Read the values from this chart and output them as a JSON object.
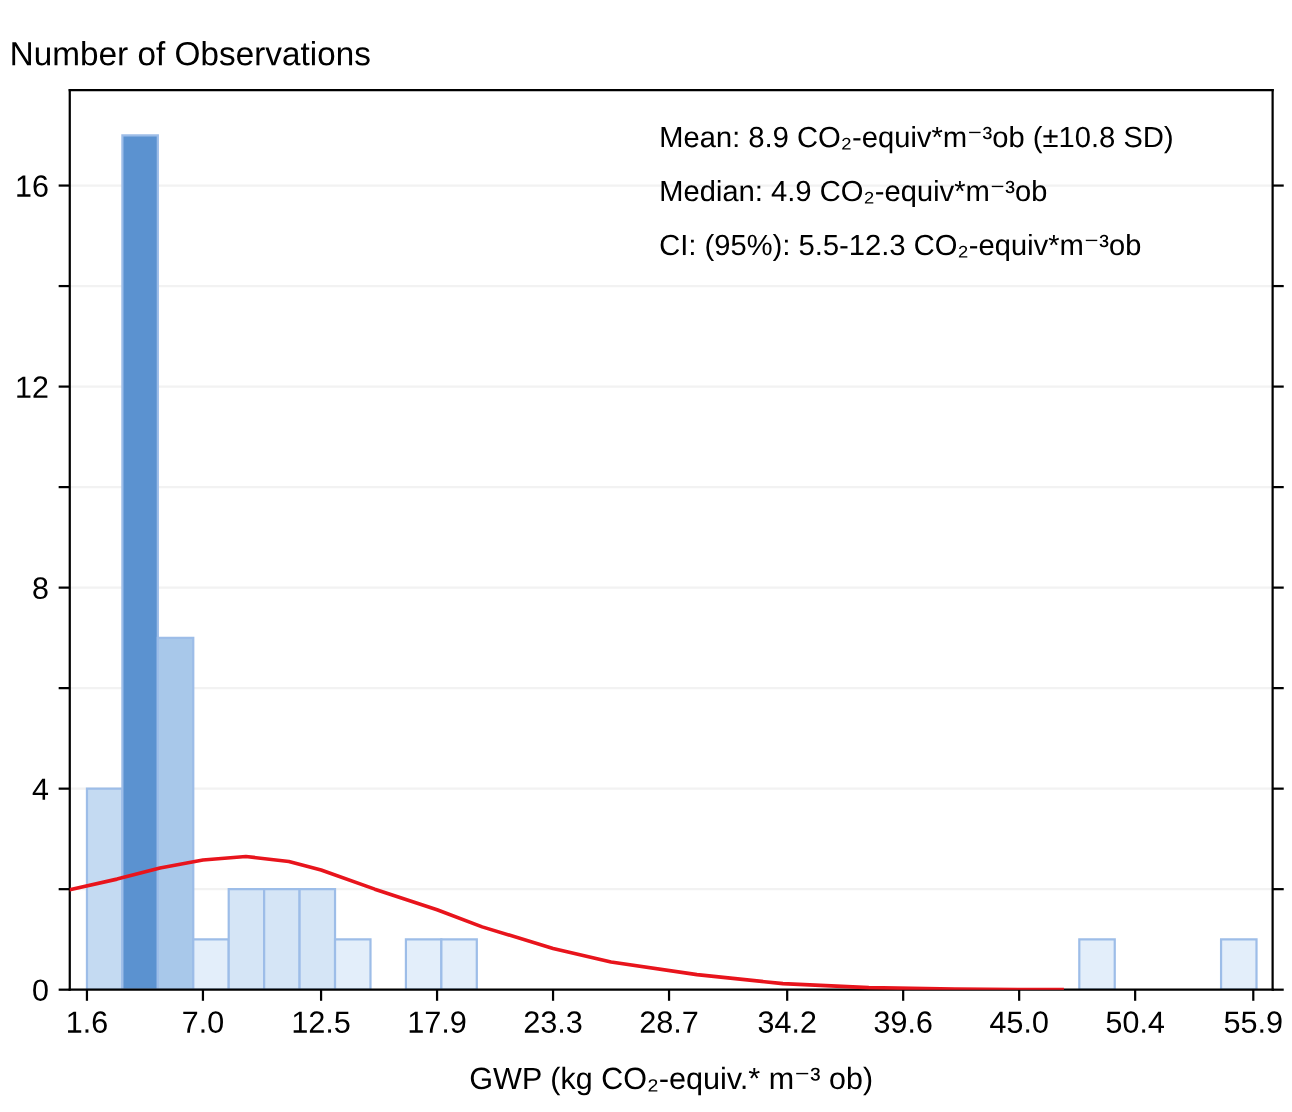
{
  "chart_data": {
    "type": "histogram",
    "ylabel": "Number of Observations",
    "xlabel": "GWP (kg CO₂-equiv.* m⁻³ ob)",
    "bins": [
      1.6,
      3.25,
      4.9,
      6.55,
      8.2,
      9.85,
      11.5,
      13.15,
      14.8,
      16.45,
      18.1,
      19.75,
      21.4,
      23.05,
      24.7,
      26.35,
      28,
      29.65,
      31.3,
      32.95,
      34.6,
      36.25,
      37.9,
      39.55,
      41.2,
      42.85,
      44.5,
      46.15,
      47.8,
      49.45,
      51.1,
      52.75,
      54.4,
      56.05
    ],
    "values": [
      4,
      17,
      7,
      1,
      2,
      2,
      2,
      1,
      0,
      1,
      1,
      0,
      0,
      0,
      0,
      0,
      0,
      0,
      0,
      0,
      0,
      0,
      0,
      0,
      0,
      0,
      0,
      0,
      1,
      0,
      0,
      0,
      1
    ],
    "colors": [
      "#c4daf2",
      "#5b92d0",
      "#a8c8ea",
      "#e3eefa",
      "#d5e5f6",
      "#d5e5f6",
      "#d5e5f6",
      "#e3eefa",
      "#e3eefa",
      "#e3eefa",
      "#e3eefa",
      "#e3eefa",
      "#e3eefa",
      "#e3eefa",
      "#e3eefa",
      "#e3eefa",
      "#e3eefa",
      "#e3eefa",
      "#e3eefa",
      "#e3eefa",
      "#e3eefa",
      "#e3eefa",
      "#e3eefa",
      "#e3eefa",
      "#e3eefa",
      "#e3eefa",
      "#e3eefa",
      "#e3eefa",
      "#e3eefa",
      "#e3eefa",
      "#e3eefa",
      "#e3eefa",
      "#e3eefa"
    ],
    "series": [
      {
        "type": "line",
        "color": "#e8141c",
        "x": [
          0.8,
          3,
          5,
          7,
          9,
          11,
          12.5,
          15,
          17.9,
          20,
          23.3,
          26,
          30,
          34,
          38,
          42,
          45,
          47
        ],
        "values": [
          1.99,
          2.2,
          2.42,
          2.58,
          2.65,
          2.55,
          2.38,
          2.0,
          1.59,
          1.25,
          0.82,
          0.55,
          0.3,
          0.12,
          0.04,
          0.01,
          0.0,
          0.0
        ]
      }
    ],
    "xlim": [
      0.8,
      56.8
    ],
    "ylim": [
      0,
      17.9
    ],
    "xticks": [
      {
        "value": 1.6,
        "label": "1.6"
      },
      {
        "value": 7.0,
        "label": "7.0"
      },
      {
        "value": 12.5,
        "label": "12.5"
      },
      {
        "value": 17.9,
        "label": "17.9"
      },
      {
        "value": 23.3,
        "label": "23.3"
      },
      {
        "value": 28.7,
        "label": "28.7"
      },
      {
        "value": 34.2,
        "label": "34.2"
      },
      {
        "value": 39.6,
        "label": "39.6"
      },
      {
        "value": 45.0,
        "label": "45.0"
      },
      {
        "value": 50.4,
        "label": "50.4"
      },
      {
        "value": 55.9,
        "label": "55.9"
      }
    ],
    "yticks": [
      0,
      {
        "value": 2,
        "label": null
      },
      4,
      {
        "value": 6,
        "label": null
      },
      8,
      {
        "value": 10,
        "label": null
      },
      12,
      {
        "value": 14,
        "label": null
      },
      16
    ],
    "grid": "y",
    "annotations": [
      "Mean: 8.9 CO₂-equiv*m⁻³ob (±10.8 SD)",
      "Median: 4.9 CO₂-equiv*m⁻³ob",
      "CI: (95%): 5.5-12.3 CO₂-equiv*m⁻³ob"
    ]
  }
}
